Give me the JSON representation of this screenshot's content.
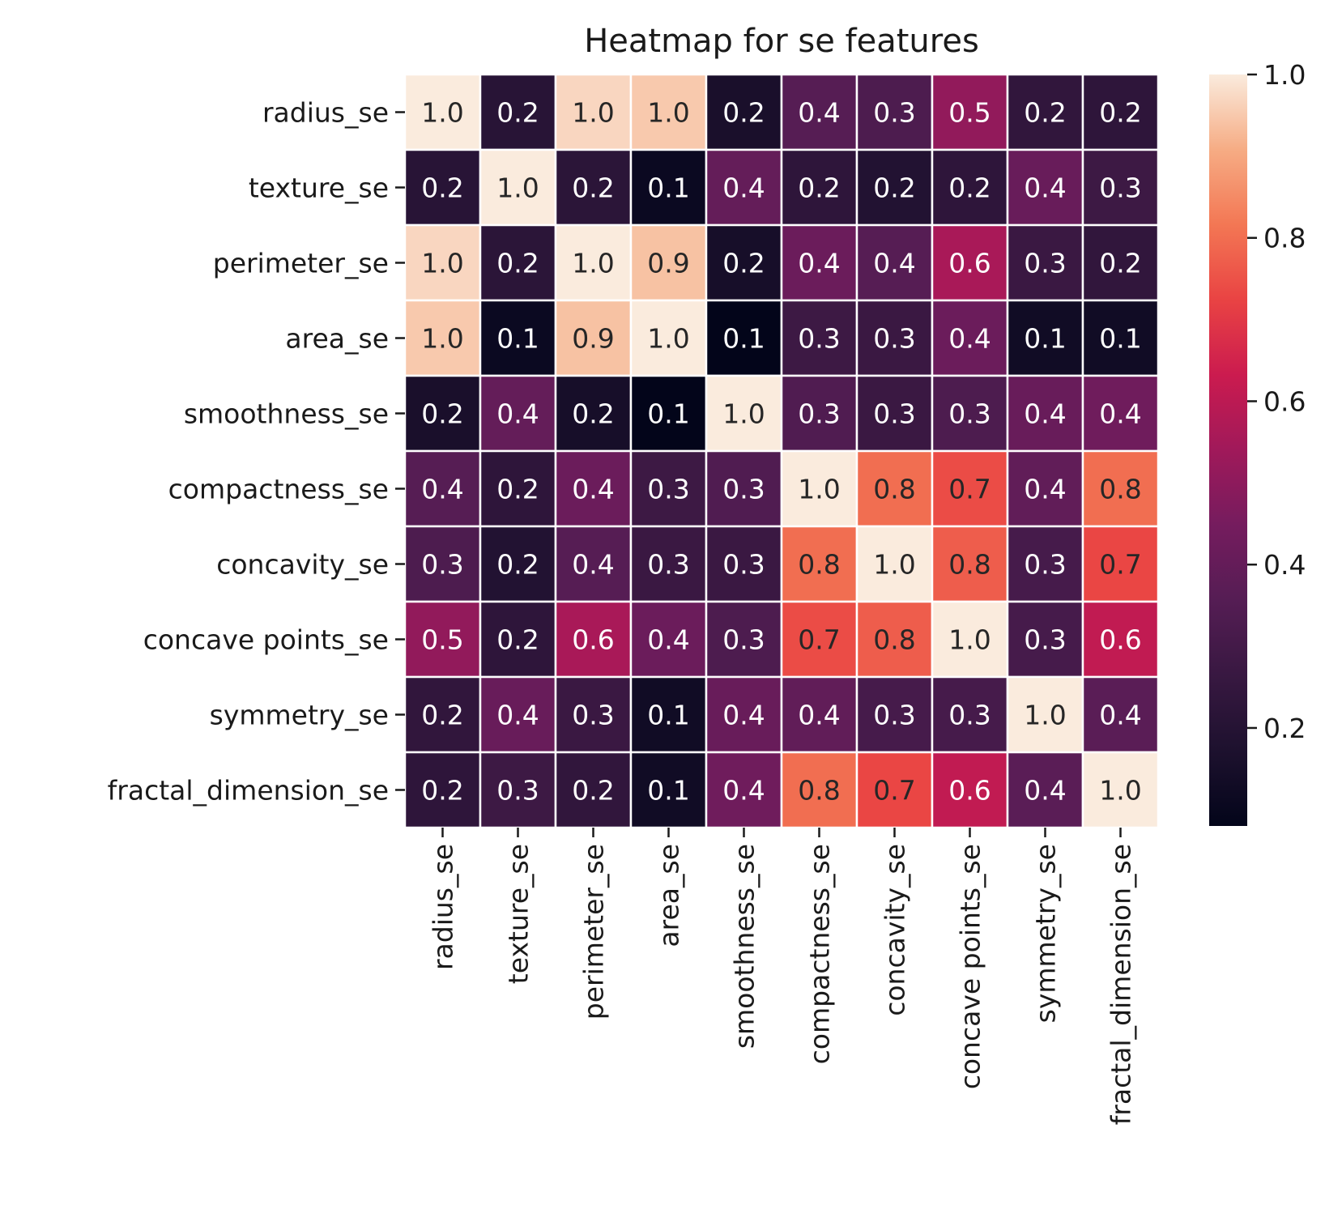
{
  "chart_data": {
    "type": "heatmap",
    "title": "Heatmap for se features",
    "xlabel": "",
    "ylabel": "",
    "rows": [
      "radius_se",
      "texture_se",
      "perimeter_se",
      "area_se",
      "smoothness_se",
      "compactness_se",
      "concavity_se",
      "concave points_se",
      "symmetry_se",
      "fractal_dimension_se"
    ],
    "columns": [
      "radius_se",
      "texture_se",
      "perimeter_se",
      "area_se",
      "smoothness_se",
      "compactness_se",
      "concavity_se",
      "concave points_se",
      "symmetry_se",
      "fractal_dimension_se"
    ],
    "values": [
      [
        1.0,
        0.21,
        0.97,
        0.95,
        0.16,
        0.36,
        0.33,
        0.51,
        0.24,
        0.23
      ],
      [
        0.21,
        1.0,
        0.22,
        0.11,
        0.4,
        0.23,
        0.19,
        0.23,
        0.41,
        0.28
      ],
      [
        0.97,
        0.22,
        1.0,
        0.94,
        0.15,
        0.42,
        0.36,
        0.56,
        0.27,
        0.24
      ],
      [
        0.95,
        0.11,
        0.94,
        1.0,
        0.08,
        0.28,
        0.27,
        0.42,
        0.13,
        0.13
      ],
      [
        0.16,
        0.4,
        0.15,
        0.08,
        1.0,
        0.34,
        0.27,
        0.33,
        0.41,
        0.43
      ],
      [
        0.36,
        0.23,
        0.42,
        0.28,
        0.34,
        1.0,
        0.8,
        0.74,
        0.39,
        0.8
      ],
      [
        0.33,
        0.19,
        0.36,
        0.27,
        0.27,
        0.8,
        1.0,
        0.77,
        0.31,
        0.73
      ],
      [
        0.51,
        0.23,
        0.56,
        0.42,
        0.33,
        0.74,
        0.77,
        1.0,
        0.31,
        0.61
      ],
      [
        0.24,
        0.41,
        0.27,
        0.13,
        0.41,
        0.39,
        0.31,
        0.31,
        1.0,
        0.37
      ],
      [
        0.23,
        0.28,
        0.24,
        0.13,
        0.43,
        0.8,
        0.73,
        0.61,
        0.37,
        1.0
      ]
    ],
    "value_labels": [
      [
        "1.0",
        "0.2",
        "1.0",
        "1.0",
        "0.2",
        "0.4",
        "0.3",
        "0.5",
        "0.2",
        "0.2"
      ],
      [
        "0.2",
        "1.0",
        "0.2",
        "0.1",
        "0.4",
        "0.2",
        "0.2",
        "0.2",
        "0.4",
        "0.3"
      ],
      [
        "1.0",
        "0.2",
        "1.0",
        "0.9",
        "0.2",
        "0.4",
        "0.4",
        "0.6",
        "0.3",
        "0.2"
      ],
      [
        "1.0",
        "0.1",
        "0.9",
        "1.0",
        "0.1",
        "0.3",
        "0.3",
        "0.4",
        "0.1",
        "0.1"
      ],
      [
        "0.2",
        "0.4",
        "0.2",
        "0.1",
        "1.0",
        "0.3",
        "0.3",
        "0.3",
        "0.4",
        "0.4"
      ],
      [
        "0.4",
        "0.2",
        "0.4",
        "0.3",
        "0.3",
        "1.0",
        "0.8",
        "0.7",
        "0.4",
        "0.8"
      ],
      [
        "0.3",
        "0.2",
        "0.4",
        "0.3",
        "0.3",
        "0.8",
        "1.0",
        "0.8",
        "0.3",
        "0.7"
      ],
      [
        "0.5",
        "0.2",
        "0.6",
        "0.4",
        "0.3",
        "0.7",
        "0.8",
        "1.0",
        "0.3",
        "0.6"
      ],
      [
        "0.2",
        "0.4",
        "0.3",
        "0.1",
        "0.4",
        "0.4",
        "0.3",
        "0.3",
        "1.0",
        "0.4"
      ],
      [
        "0.2",
        "0.3",
        "0.2",
        "0.1",
        "0.4",
        "0.8",
        "0.7",
        "0.6",
        "0.4",
        "1.0"
      ]
    ],
    "colorbar": {
      "range": [
        0.08,
        1.0
      ],
      "ticks": [
        "0.2",
        "0.4",
        "0.6",
        "0.8",
        "1.0"
      ],
      "colormap": "rocket",
      "placement": "right"
    },
    "cell_border_color": "#ffffff",
    "grid": false
  }
}
